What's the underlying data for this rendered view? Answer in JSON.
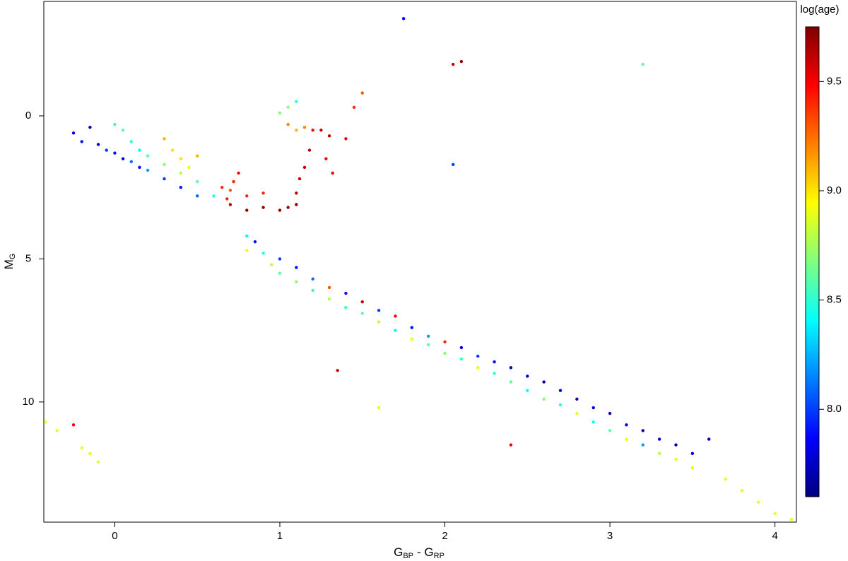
{
  "chart_data": {
    "type": "scatter",
    "xlabel": {
      "base": "G",
      "sub": "BP",
      "base2": "- G",
      "sub2": "RP"
    },
    "ylabel": {
      "base": "M",
      "sub": "G"
    },
    "colorbar_label": "log(age)",
    "xlim": [
      -0.43,
      4.13
    ],
    "xticks": [
      0,
      1,
      2,
      3,
      4
    ],
    "ylim": [
      14.2,
      -4.0
    ],
    "yticks": [
      0,
      5,
      10
    ],
    "clim": [
      7.6,
      9.75
    ],
    "cticks": [
      {
        "value": 8,
        "label": "8.0"
      },
      {
        "value": 8.5,
        "label": "8.5"
      },
      {
        "value": 9,
        "label": "9.0"
      },
      {
        "value": 9.5,
        "label": "9.5"
      }
    ],
    "colormap": [
      "#00007f",
      "#0000ff",
      "#007fff",
      "#00ffff",
      "#7fff7f",
      "#ffff00",
      "#ff7f00",
      "#ff0000",
      "#7f0000"
    ],
    "x": [
      -0.25,
      -0.2,
      -0.15,
      -0.1,
      -0.05,
      0,
      0.05,
      0.1,
      0.15,
      0.2,
      0.3,
      0.4,
      0.5,
      0,
      0.05,
      0.1,
      0.15,
      0.2,
      0.3,
      0.4,
      0.5,
      0.6,
      0.35,
      0.4,
      0.45,
      0.3,
      0.5,
      0.65,
      0.7,
      0.68,
      0.72,
      0.75,
      0.7,
      0.8,
      0.9,
      1.0,
      1.05,
      1.1,
      1.1,
      1.12,
      1.15,
      1.18,
      1.2,
      1.25,
      1.3,
      1.28,
      1.32,
      1.4,
      1.45,
      1.5,
      0.8,
      0.9,
      1.05,
      1.1,
      1.15,
      1.05,
      1.0,
      1.1,
      0.8,
      0.8,
      0.85,
      0.9,
      0.95,
      1.0,
      1.0,
      1.1,
      1.1,
      1.2,
      1.2,
      1.3,
      1.3,
      1.4,
      1.4,
      1.5,
      1.5,
      1.6,
      1.6,
      1.7,
      1.7,
      1.8,
      1.8,
      1.9,
      1.9,
      2.0,
      2.0,
      2.1,
      2.1,
      2.2,
      2.2,
      2.3,
      2.3,
      2.4,
      2.4,
      2.5,
      2.5,
      2.6,
      2.6,
      2.7,
      2.7,
      2.8,
      2.8,
      2.9,
      2.9,
      3.0,
      3.0,
      3.1,
      3.1,
      3.2,
      3.2,
      3.3,
      3.3,
      3.4,
      3.4,
      3.5,
      3.5,
      3.6,
      3.7,
      3.8,
      3.9,
      4.0,
      4.1,
      1.75,
      2.05,
      2.1,
      3.2,
      2.05,
      1.35,
      1.6,
      2.4,
      -0.1,
      -0.15,
      -0.2,
      -0.35,
      -0.42,
      -0.25
    ],
    "y": [
      0.6,
      0.9,
      0.4,
      1.0,
      1.2,
      1.3,
      1.5,
      1.6,
      1.8,
      1.9,
      2.2,
      2.5,
      2.8,
      0.3,
      0.5,
      0.9,
      1.2,
      1.4,
      1.7,
      2.0,
      2.3,
      2.8,
      1.2,
      1.5,
      1.8,
      0.8,
      1.4,
      2.5,
      2.6,
      2.9,
      2.3,
      2.0,
      3.1,
      3.3,
      3.2,
      3.3,
      3.2,
      3.1,
      2.7,
      2.2,
      1.8,
      1.2,
      0.5,
      0.5,
      0.7,
      1.5,
      2.0,
      0.8,
      -0.3,
      -0.8,
      2.8,
      2.7,
      0.3,
      0.5,
      0.4,
      -0.3,
      -0.1,
      -0.5,
      4.2,
      4.7,
      4.4,
      4.8,
      5.2,
      5.0,
      5.5,
      5.3,
      5.8,
      5.7,
      6.1,
      6.0,
      6.4,
      6.2,
      6.7,
      6.5,
      6.9,
      6.8,
      7.2,
      7.0,
      7.5,
      7.4,
      7.8,
      7.7,
      8.0,
      7.9,
      8.3,
      8.1,
      8.5,
      8.4,
      8.8,
      8.6,
      9.0,
      8.8,
      9.3,
      9.1,
      9.6,
      9.3,
      9.9,
      9.6,
      10.1,
      9.9,
      10.4,
      10.2,
      10.7,
      10.4,
      11.0,
      10.8,
      11.3,
      11.0,
      11.5,
      11.3,
      11.8,
      11.5,
      12.0,
      11.8,
      12.3,
      11.3,
      12.7,
      13.1,
      13.5,
      13.9,
      14.1,
      -3.4,
      -1.8,
      -1.9,
      -1.8,
      1.7,
      8.9,
      10.2,
      11.5,
      12.1,
      11.8,
      11.6,
      11.0,
      10.7,
      10.8
    ],
    "age": [
      7.8,
      7.9,
      7.7,
      7.8,
      8.0,
      7.9,
      7.8,
      8.1,
      7.9,
      8.2,
      8.0,
      7.9,
      8.1,
      8.5,
      8.6,
      8.5,
      8.4,
      8.6,
      8.7,
      8.8,
      8.6,
      8.5,
      9.0,
      9.0,
      8.9,
      9.1,
      9.1,
      9.4,
      9.3,
      9.4,
      9.4,
      9.5,
      9.6,
      9.7,
      9.7,
      9.7,
      9.7,
      9.7,
      9.6,
      9.6,
      9.6,
      9.6,
      9.5,
      9.6,
      9.6,
      9.5,
      9.5,
      9.5,
      9.4,
      9.3,
      9.4,
      9.4,
      9.2,
      9.1,
      9.2,
      8.7,
      8.7,
      8.5,
      8.4,
      8.9,
      7.9,
      8.5,
      8.8,
      8.0,
      8.6,
      7.9,
      8.7,
      8.1,
      8.5,
      9.3,
      8.8,
      7.9,
      8.5,
      9.6,
      8.6,
      8.0,
      8.8,
      9.5,
      8.4,
      7.9,
      8.9,
      8.2,
      8.6,
      9.4,
      8.7,
      7.8,
      8.5,
      8.0,
      8.9,
      7.9,
      8.5,
      7.7,
      8.6,
      7.8,
      8.4,
      7.7,
      8.7,
      7.8,
      8.5,
      7.7,
      8.9,
      7.8,
      8.4,
      7.7,
      8.6,
      7.8,
      8.9,
      7.7,
      8.2,
      7.8,
      8.8,
      7.7,
      8.9,
      7.8,
      8.9,
      7.7,
      8.9,
      8.9,
      8.9,
      8.9,
      8.9,
      7.8,
      9.6,
      9.7,
      8.6,
      8.0,
      9.6,
      8.9,
      9.5,
      8.9,
      8.9,
      8.9,
      8.9,
      8.9,
      9.5
    ]
  }
}
